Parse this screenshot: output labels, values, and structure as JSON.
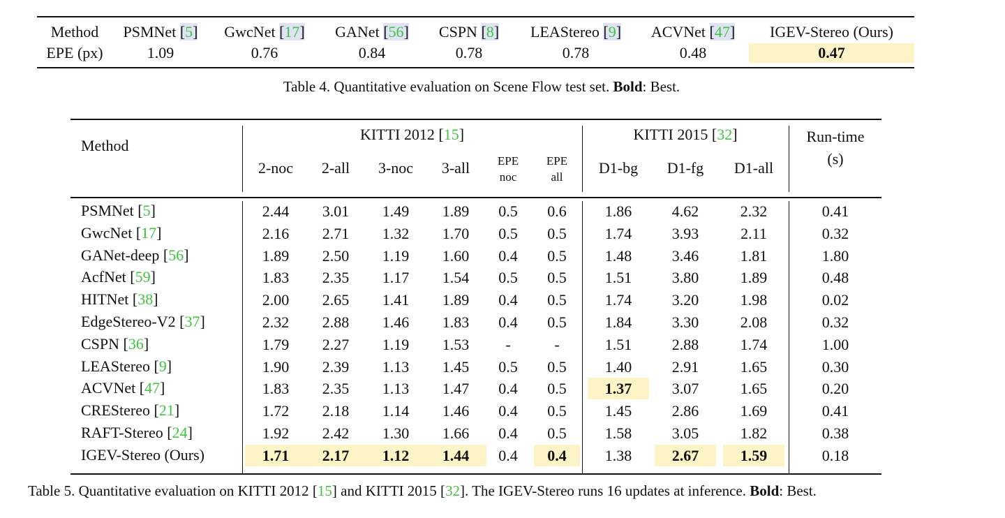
{
  "table4": {
    "header_label": "Method",
    "row_label": "EPE (px)",
    "methods": [
      {
        "name": "PSMNet",
        "cite": "5",
        "epe": "1.09"
      },
      {
        "name": "GwcNet",
        "cite": "17",
        "epe": "0.76"
      },
      {
        "name": "GANet",
        "cite": "56",
        "epe": "0.84"
      },
      {
        "name": "CSPN",
        "cite": "8",
        "epe": "0.78"
      },
      {
        "name": "LEAStereo",
        "cite": "9",
        "epe": "0.78"
      },
      {
        "name": "ACVNet",
        "cite": "47",
        "epe": "0.48"
      },
      {
        "name": "IGEV-Stereo (Ours)",
        "cite": "",
        "epe": "0.47"
      }
    ],
    "caption_prefix": "Table 4. Quantitative evaluation on Scene Flow test set. ",
    "caption_bold": "Bold",
    "caption_suffix": ": Best."
  },
  "table5": {
    "method_header": "Method",
    "kitti2012_header": "KITTI 2012",
    "kitti2012_cite": "15",
    "kitti2015_header": "KITTI 2015",
    "kitti2015_cite": "32",
    "runtime_header_1": "Run-time",
    "runtime_header_2": "(s)",
    "col_2noc": "2-noc",
    "col_2all": "2-all",
    "col_3noc": "3-noc",
    "col_3all": "3-all",
    "col_epe_noc_1": "EPE",
    "col_epe_noc_2": "noc",
    "col_epe_all_1": "EPE",
    "col_epe_all_2": "all",
    "col_d1bg": "D1-bg",
    "col_d1fg": "D1-fg",
    "col_d1all": "D1-all",
    "rows": [
      {
        "name": "PSMNet",
        "cite": "5",
        "v": [
          "2.44",
          "3.01",
          "1.49",
          "1.89",
          "0.5",
          "0.6",
          "1.86",
          "4.62",
          "2.32",
          "0.41"
        ]
      },
      {
        "name": "GwcNet",
        "cite": "17",
        "v": [
          "2.16",
          "2.71",
          "1.32",
          "1.70",
          "0.5",
          "0.5",
          "1.74",
          "3.93",
          "2.11",
          "0.32"
        ]
      },
      {
        "name": "GANet-deep",
        "cite": "56",
        "v": [
          "1.89",
          "2.50",
          "1.19",
          "1.60",
          "0.4",
          "0.5",
          "1.48",
          "3.46",
          "1.81",
          "1.80"
        ]
      },
      {
        "name": "AcfNet",
        "cite": "59",
        "v": [
          "1.83",
          "2.35",
          "1.17",
          "1.54",
          "0.5",
          "0.5",
          "1.51",
          "3.80",
          "1.89",
          "0.48"
        ]
      },
      {
        "name": "HITNet",
        "cite": "38",
        "v": [
          "2.00",
          "2.65",
          "1.41",
          "1.89",
          "0.4",
          "0.5",
          "1.74",
          "3.20",
          "1.98",
          "0.02"
        ]
      },
      {
        "name": "EdgeStereo-V2",
        "cite": "37",
        "v": [
          "2.32",
          "2.88",
          "1.46",
          "1.83",
          "0.4",
          "0.5",
          "1.84",
          "3.30",
          "2.08",
          "0.32"
        ]
      },
      {
        "name": "CSPN",
        "cite": "36",
        "v": [
          "1.79",
          "2.27",
          "1.19",
          "1.53",
          "-",
          "-",
          "1.51",
          "2.88",
          "1.74",
          "1.00"
        ]
      },
      {
        "name": "LEAStereo",
        "cite": "9",
        "v": [
          "1.90",
          "2.39",
          "1.13",
          "1.45",
          "0.5",
          "0.5",
          "1.40",
          "2.91",
          "1.65",
          "0.30"
        ]
      },
      {
        "name": "ACVNet",
        "cite": "47",
        "v": [
          "1.83",
          "2.35",
          "1.13",
          "1.47",
          "0.4",
          "0.5",
          "1.37",
          "3.07",
          "1.65",
          "0.20"
        ]
      },
      {
        "name": "CREStereo",
        "cite": "21",
        "v": [
          "1.72",
          "2.18",
          "1.14",
          "1.46",
          "0.4",
          "0.5",
          "1.45",
          "2.86",
          "1.69",
          "0.41"
        ]
      },
      {
        "name": "RAFT-Stereo",
        "cite": "24",
        "v": [
          "1.92",
          "2.42",
          "1.30",
          "1.66",
          "0.4",
          "0.5",
          "1.58",
          "3.05",
          "1.82",
          "0.38"
        ]
      },
      {
        "name": "IGEV-Stereo (Ours)",
        "cite": "",
        "v": [
          "1.71",
          "2.17",
          "1.12",
          "1.44",
          "0.4",
          "0.4",
          "1.38",
          "2.67",
          "1.59",
          "0.18"
        ]
      }
    ],
    "caption_1": "Table 5. Quantitative evaluation on KITTI 2012 [",
    "caption_cite_1": "15",
    "caption_2": "] and KITTI 2015 [",
    "caption_cite_2": "32",
    "caption_3": "]. The IGEV-Stereo runs 16 updates at inference. ",
    "caption_bold": "Bold",
    "caption_4": ": Best."
  },
  "colors": {
    "highlight": "#fcf4c6",
    "cite": "#3ec43e",
    "cite_box": "#dfe3f4"
  }
}
